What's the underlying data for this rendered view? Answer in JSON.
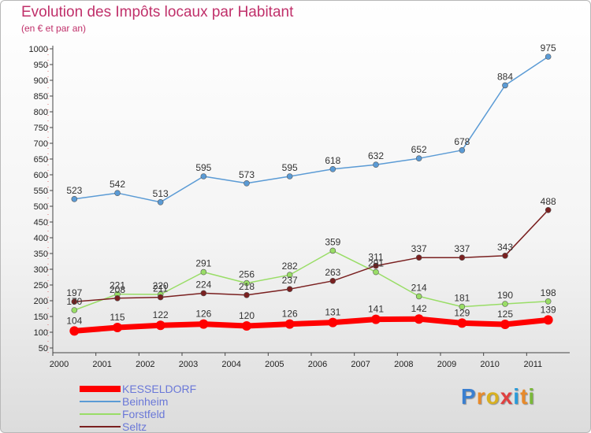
{
  "header": {
    "title": "Evolution des Impôts locaux par Habitant",
    "subtitle": "(en € et par an)"
  },
  "brand": {
    "letters": [
      "P",
      "r",
      "o",
      "x",
      "i",
      "t",
      "i"
    ],
    "colors": [
      "#3a7fd0",
      "#e88a2a",
      "#d8b020",
      "#e04040",
      "#2a9ad8",
      "#e88a2a",
      "#7ab83a"
    ]
  },
  "chart_data": {
    "type": "line",
    "x": [
      "2000",
      "2001",
      "2002",
      "2003",
      "2004",
      "2005",
      "2006",
      "2007",
      "2008",
      "2009",
      "2010",
      "2011"
    ],
    "ylim": [
      50,
      1000
    ],
    "yticks": [
      50,
      100,
      150,
      200,
      250,
      300,
      350,
      400,
      450,
      500,
      550,
      600,
      650,
      700,
      750,
      800,
      850,
      900,
      950,
      1000
    ],
    "grid": false,
    "legend_position": "bottom-left",
    "series": [
      {
        "name": "KESSELDORF",
        "color": "#ff0000",
        "values": [
          104,
          115,
          122,
          126,
          120,
          126,
          131,
          141,
          142,
          129,
          125,
          139
        ]
      },
      {
        "name": "Beinheim",
        "color": "#5b9bd5",
        "values": [
          523,
          542,
          513,
          595,
          573,
          595,
          618,
          632,
          652,
          678,
          884,
          975
        ]
      },
      {
        "name": "Forstfeld",
        "color": "#99dd66",
        "values": [
          170,
          221,
          220,
          291,
          256,
          282,
          359,
          291,
          214,
          181,
          190,
          198
        ]
      },
      {
        "name": "Seltz",
        "color": "#7a2020",
        "values": [
          197,
          208,
          211,
          224,
          218,
          237,
          263,
          311,
          337,
          337,
          343,
          488
        ]
      }
    ]
  }
}
